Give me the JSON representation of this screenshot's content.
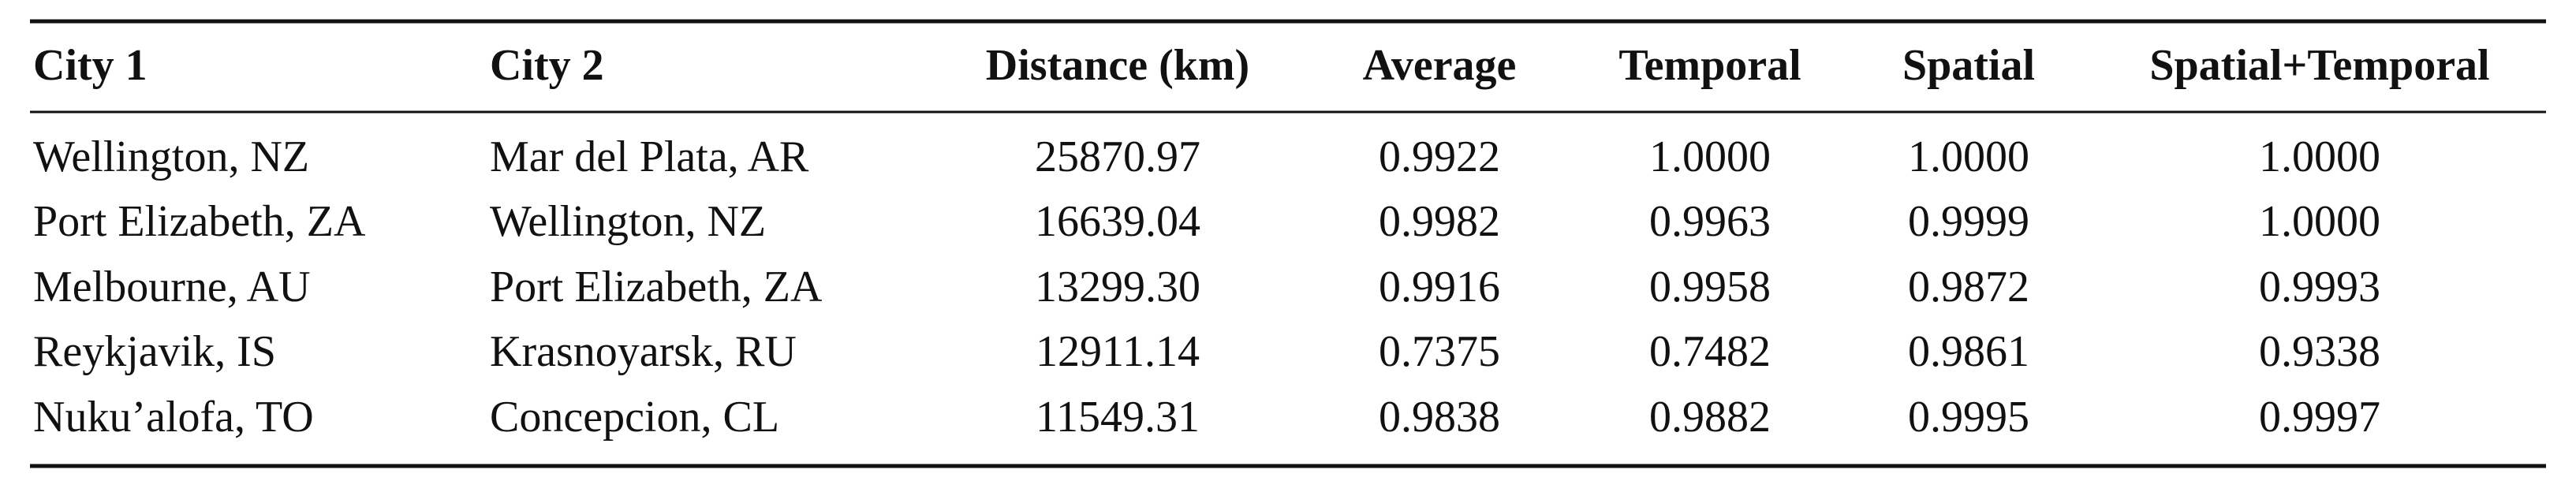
{
  "table": {
    "header": [
      "City 1",
      "City 2",
      "Distance (km)",
      "Average",
      "Temporal",
      "Spatial",
      "Spatial+Temporal"
    ],
    "rows": [
      [
        "Wellington, NZ",
        "Mar del Plata, AR",
        "25870.97",
        "0.9922",
        "1.0000",
        "1.0000",
        "1.0000"
      ],
      [
        "Port Elizabeth, ZA",
        "Wellington, NZ",
        "16639.04",
        "0.9982",
        "0.9963",
        "0.9999",
        "1.0000"
      ],
      [
        "Melbourne, AU",
        "Port Elizabeth, ZA",
        "13299.30",
        "0.9916",
        "0.9958",
        "0.9872",
        "0.9993"
      ],
      [
        "Reykjavik, IS",
        "Krasnoyarsk, RU",
        "12911.14",
        "0.7375",
        "0.7482",
        "0.9861",
        "0.9338"
      ],
      [
        "Nuku’alofa, TO",
        "Concepcion, CL",
        "11549.31",
        "0.9838",
        "0.9882",
        "0.9995",
        "0.9997"
      ]
    ]
  }
}
